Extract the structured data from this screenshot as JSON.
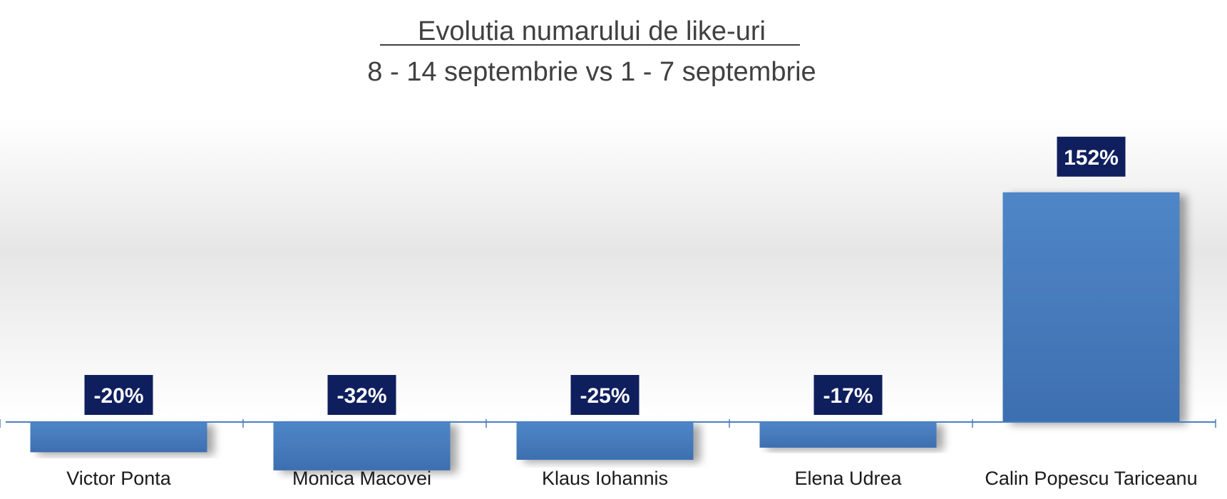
{
  "chart_data": {
    "type": "bar",
    "title": "Evolutia numarului de like-uri",
    "subtitle": "8 - 14 septembrie vs 1 - 7 septembrie",
    "categories": [
      "Victor Ponta",
      "Monica Macovei",
      "Klaus Iohannis",
      "Elena Udrea",
      "Calin Popescu Tariceanu"
    ],
    "values": [
      -20,
      -32,
      -25,
      -17,
      152
    ],
    "data_labels": [
      "-20%",
      "-32%",
      "-25%",
      "-17%",
      "152%"
    ],
    "value_unit": "%",
    "ylim": [
      -40,
      190
    ],
    "grid": false,
    "legend": "none",
    "colors": {
      "bar": "#4a7fc1",
      "bar_dark": "#3a6aa8",
      "label_bg": "#0f1f5e",
      "label_text": "#ffffff",
      "axis": "#4a7fc1",
      "title_text": "#404040",
      "category_text": "#1a1a1a",
      "spellcheck_underline": "#e03030"
    }
  }
}
